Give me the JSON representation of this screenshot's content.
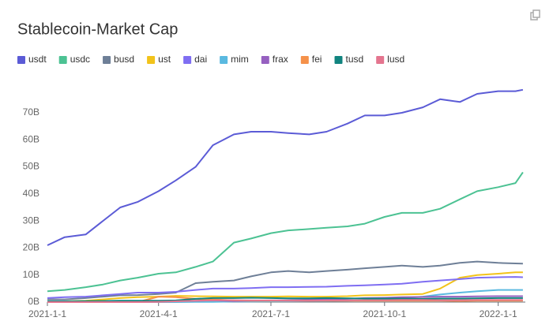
{
  "chart_data": {
    "type": "line",
    "title": "Stablecoin-Market Cap",
    "x": [
      "2021-1-1",
      "2021-1-15",
      "2021-2-1",
      "2021-2-15",
      "2021-3-1",
      "2021-3-15",
      "2021-4-1",
      "2021-4-15",
      "2021-5-1",
      "2021-5-15",
      "2021-6-1",
      "2021-6-15",
      "2021-7-1",
      "2021-7-15",
      "2021-8-1",
      "2021-8-15",
      "2021-9-1",
      "2021-9-15",
      "2021-10-1",
      "2021-10-15",
      "2021-11-1",
      "2021-11-15",
      "2021-12-1",
      "2021-12-15",
      "2022-1-1",
      "2022-1-15",
      "2022-1-21"
    ],
    "xlim": [
      "2021-1-1",
      "2022-1-23"
    ],
    "xticks": [
      "2021-1-1",
      "2021-4-1",
      "2021-7-1",
      "2021-10-1",
      "2022-1-1"
    ],
    "ylim": [
      0,
      80
    ],
    "yticks": [
      {
        "value": 0,
        "label": "0B"
      },
      {
        "value": 10,
        "label": "10B"
      },
      {
        "value": 20,
        "label": "20B"
      },
      {
        "value": 30,
        "label": "30B"
      },
      {
        "value": 40,
        "label": "40B"
      },
      {
        "value": 50,
        "label": "50B"
      },
      {
        "value": 60,
        "label": "60B"
      },
      {
        "value": 70,
        "label": "70B"
      }
    ],
    "grid": false,
    "legend": "top-left",
    "series": [
      {
        "name": "usdt",
        "color": "#5b5bd6",
        "values": [
          21,
          24,
          25,
          30,
          35,
          37,
          41,
          45,
          50,
          58,
          62,
          63,
          63,
          62.5,
          62,
          63,
          66,
          69,
          69,
          70,
          72,
          75,
          74,
          77,
          78,
          78,
          78.5
        ]
      },
      {
        "name": "usdc",
        "color": "#4cc293",
        "values": [
          4,
          4.5,
          5.5,
          6.5,
          8,
          9,
          10.5,
          11,
          13,
          15,
          22,
          23.5,
          25.5,
          26.5,
          27,
          27.5,
          28,
          29,
          31.5,
          33,
          33,
          34.5,
          38,
          41,
          42.5,
          44,
          48
        ]
      },
      {
        "name": "busd",
        "color": "#6e7f97",
        "values": [
          1,
          1,
          1.5,
          2,
          2.5,
          2.6,
          3,
          3.5,
          7,
          7.5,
          8,
          9.5,
          11,
          11.5,
          11,
          11.5,
          12,
          12.5,
          13,
          13.5,
          13,
          13.5,
          14.5,
          15,
          14.5,
          14.3,
          14.2
        ]
      },
      {
        "name": "ust",
        "color": "#f2c31a",
        "values": [
          0.2,
          0.3,
          0.5,
          1,
          1.5,
          1.8,
          2,
          2.3,
          2.2,
          2.1,
          2,
          2,
          2,
          2.1,
          2,
          2,
          2.2,
          2.5,
          2.6,
          2.8,
          3,
          5,
          9,
          10,
          10.5,
          11,
          11
        ]
      },
      {
        "name": "dai",
        "color": "#7f6ef2",
        "values": [
          1.5,
          1.8,
          2,
          2.5,
          3,
          3.5,
          3.5,
          3.8,
          4.5,
          5,
          5,
          5.2,
          5.5,
          5.5,
          5.6,
          5.7,
          6,
          6.2,
          6.5,
          6.8,
          7.5,
          8,
          8.5,
          9,
          9.2,
          9.3,
          9.2
        ]
      },
      {
        "name": "mim",
        "color": "#5ab9e0",
        "values": [
          0,
          0,
          0,
          0,
          0,
          0,
          0,
          0,
          0.1,
          0.1,
          0.2,
          0.2,
          0.3,
          0.3,
          0.4,
          0.4,
          0.5,
          0.7,
          1,
          1.5,
          2,
          2.8,
          3.5,
          4,
          4.5,
          4.5,
          4.5
        ]
      },
      {
        "name": "frax",
        "color": "#9660c0",
        "values": [
          0.1,
          0.1,
          0.15,
          0.2,
          0.2,
          0.25,
          0.3,
          0.4,
          0.5,
          0.6,
          0.4,
          0.5,
          0.6,
          0.7,
          0.9,
          1,
          1.2,
          1.5,
          1.6,
          1.8,
          1.9,
          2,
          2,
          2.1,
          2.2,
          2.2,
          2.2
        ]
      },
      {
        "name": "fei",
        "color": "#f5914a",
        "values": [
          0,
          0,
          0,
          0,
          0,
          0,
          2,
          1.8,
          1.2,
          1,
          0.6,
          0.5,
          0.5,
          0.5,
          0.5,
          0.5,
          0.5,
          0.5,
          0.5,
          0.5,
          0.5,
          0.5,
          0.4,
          0.5,
          0.5,
          0.5,
          0.5
        ]
      },
      {
        "name": "tusd",
        "color": "#11847f",
        "values": [
          0.3,
          0.3,
          0.35,
          0.4,
          0.5,
          0.5,
          0.5,
          0.6,
          1.2,
          1.5,
          1.5,
          1.6,
          1.5,
          1.4,
          1.4,
          1.5,
          1.4,
          1.3,
          1.3,
          1.3,
          1.2,
          1.3,
          1.3,
          1.4,
          1.5,
          1.5,
          1.5
        ]
      },
      {
        "name": "lusd",
        "color": "#e4758f",
        "values": [
          0,
          0,
          0,
          0,
          0,
          0,
          0.1,
          0.3,
          0.5,
          0.6,
          0.7,
          0.6,
          0.6,
          0.5,
          0.5,
          0.6,
          0.6,
          0.7,
          0.7,
          0.8,
          0.8,
          0.7,
          0.7,
          0.8,
          0.8,
          0.8,
          0.8
        ]
      }
    ]
  }
}
